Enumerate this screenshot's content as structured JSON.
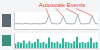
{
  "chart_data": [
    {
      "type": "line",
      "annotations": [
        {
          "text": "Autoscale Events",
          "x": [
            12,
            17,
            22,
            27
          ]
        }
      ],
      "x": [
        0,
        1,
        2,
        3,
        4,
        5,
        6,
        7,
        8,
        9,
        10,
        11,
        12,
        13,
        14,
        15,
        16,
        17,
        18,
        19,
        20,
        21,
        22,
        23,
        24,
        25,
        26,
        27,
        28,
        29
      ],
      "xlim": [
        0,
        29
      ],
      "ylim": [
        0,
        10
      ],
      "tick_labels": false,
      "series": [
        {
          "color": "#a9b1b8",
          "values": [
            3,
            3.2,
            3.1,
            3,
            3.3,
            3.1,
            3,
            3.2,
            3.1,
            3,
            3.2,
            3.4,
            8,
            3.2,
            3.1,
            3,
            3.3,
            7.5,
            3.2,
            3.1,
            3,
            3.2,
            8.5,
            3.1,
            3,
            3.2,
            3.1,
            7.8,
            3.2,
            3
          ]
        }
      ]
    },
    {
      "type": "bar",
      "x": [
        0,
        1,
        2,
        3,
        4,
        5,
        6,
        7,
        8,
        9,
        10,
        11,
        12,
        13,
        14,
        15,
        16,
        17,
        18,
        19,
        20,
        21,
        22,
        23,
        24,
        25,
        26,
        27,
        28,
        29
      ],
      "xlim": [
        -0.5,
        29.5
      ],
      "ylim": [
        0,
        10
      ],
      "tick_labels": false,
      "color": "#2bb39b",
      "values": [
        3,
        4,
        3.5,
        5,
        3,
        4.5,
        3.2,
        4,
        6,
        3.5,
        4,
        3,
        7,
        4,
        3.5,
        4.2,
        3,
        6.5,
        4,
        3.8,
        3.2,
        4.5,
        7.5,
        3.6,
        4,
        3.3,
        4.1,
        6.8,
        3.5,
        4
      ]
    }
  ]
}
